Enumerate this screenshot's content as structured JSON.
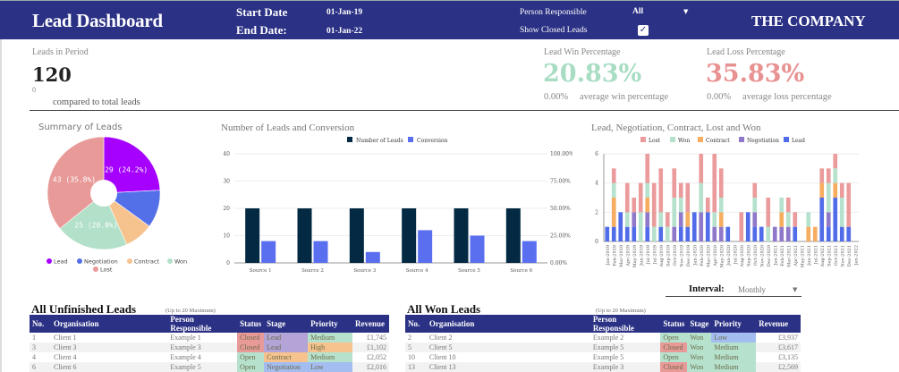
{
  "header": {
    "title": "Lead Dashboard",
    "start_label": "Start Date",
    "start_value": "01-Jan-19",
    "end_label": "End Date:",
    "end_value": "01-Jan-22",
    "person_label": "Person Responsible",
    "person_value": "All",
    "show_closed_label": "Show Closed Leads",
    "show_closed_checked": true,
    "checkmark": "✓",
    "company": "THE COMPANY"
  },
  "kpis": {
    "leads": {
      "label": "Leads in Period",
      "value": "120",
      "sub_value": "0",
      "sub_text": "compared to total leads"
    },
    "win": {
      "label": "Lead Win Percentage",
      "value": "20.83%",
      "avg_value": "0.00%",
      "avg_text": "average win percentage",
      "color": "#a8dcc3"
    },
    "loss": {
      "label": "Lead Loss Percentage",
      "value": "35.83%",
      "avg_value": "0.00%",
      "avg_text": "average loss percentage",
      "color": "#e89191"
    }
  },
  "colors": {
    "lead": "#a600ff",
    "negotiation": "#5470e8",
    "contract": "#f6c38f",
    "won": "#b2e0c9",
    "lost": "#e89a98",
    "bar_lead": "#506ce8",
    "bar_neg": "#8f77c9",
    "bar_contract": "#f6ad5f",
    "bar_won": "#b6e2cd",
    "bar_lost": "#eb9b9b",
    "num_leads": "#042a43",
    "conversion": "#5a6fef"
  },
  "chart_data": [
    {
      "type": "pie",
      "title": "Summary of Leads",
      "labels": [
        "Lead",
        "Negotiation",
        "Contract",
        "Won",
        "Lost"
      ],
      "values": [
        29,
        13,
        10,
        25,
        43
      ],
      "data_labels": [
        "29 (24.2%)",
        "",
        "",
        "25 (20.8%)",
        "43 (35.8%)"
      ],
      "legend_position": "bottom",
      "donut": true
    },
    {
      "type": "bar",
      "title": "Number of Leads and Conversion",
      "categories": [
        "Source 1",
        "Source 2",
        "Source 3",
        "Source 4",
        "Source 5",
        "Source 6"
      ],
      "series": [
        {
          "name": "Number of Leads",
          "axis": "left",
          "values": [
            20,
            20,
            20,
            20,
            20,
            20
          ]
        },
        {
          "name": "Conversion",
          "axis": "right",
          "values": [
            0.2,
            0.2,
            0.1,
            0.3,
            0.25,
            0.2
          ]
        }
      ],
      "ylim": [
        0,
        40
      ],
      "yticks": [
        "0",
        "10",
        "20",
        "30",
        "40"
      ],
      "y2lim": [
        0,
        1
      ],
      "y2ticks": [
        "0.00%",
        "25.00%",
        "50.00%",
        "75.00%",
        "100.00%"
      ],
      "legend_position": "top",
      "grid": true
    },
    {
      "type": "bar",
      "stacked": true,
      "title": "Lead, Negotiation, Contract, Lost and Won",
      "legend": [
        "Lost",
        "Won",
        "Contract",
        "Negotiation",
        "Lead"
      ],
      "categories": [
        "Jan-2019",
        "Feb-2019",
        "Mar-2019",
        "Apr-2019",
        "May-2019",
        "Jun-2019",
        "Jul-2019",
        "Jul-2019",
        "Aug-2019",
        "Sep-2019",
        "Oct-2019",
        "Nov-2019",
        "Dec-2019",
        "Jan-2020",
        "Feb-2020",
        "Mar-2020",
        "Apr-2020",
        "May-2020",
        "Jun-2020",
        "Jul-2020",
        "Aug-2020",
        "Sep-2020",
        "Oct-2020",
        "Nov-2020",
        "Dec-2020",
        "Jan-2021",
        "Feb-2021",
        "Mar-2021",
        "Apr-2021",
        "May-2021",
        "Jun-2021",
        "Jul-2021",
        "Aug-2021",
        "Sep-2021",
        "Oct-2021",
        "Nov-2021",
        "Dec-2021",
        "Jan-2022"
      ],
      "series": [
        {
          "name": "Lead",
          "values": [
            1,
            1,
            2,
            1,
            1,
            0,
            1,
            0,
            1,
            0,
            0,
            1,
            1,
            2,
            0,
            2,
            0,
            0,
            1,
            0,
            0,
            2,
            1,
            1,
            0,
            0,
            0,
            0,
            1,
            0,
            0,
            0,
            3,
            1,
            3,
            1,
            1,
            0
          ]
        },
        {
          "name": "Negotiation",
          "values": [
            0,
            0,
            0,
            0,
            1,
            0,
            1,
            0,
            0,
            0,
            1,
            1,
            0,
            0,
            2,
            0,
            1,
            1,
            0,
            0,
            0,
            0,
            1,
            0,
            0,
            1,
            1,
            1,
            0,
            0,
            0,
            0,
            0,
            1,
            0,
            0,
            0,
            0
          ]
        },
        {
          "name": "Contract",
          "values": [
            0,
            2,
            0,
            0,
            0,
            0,
            1,
            0,
            0,
            0,
            0,
            0,
            1,
            0,
            0,
            0,
            0,
            1,
            0,
            0,
            0,
            0,
            0,
            0,
            0,
            0,
            1,
            0,
            0,
            0,
            1,
            1,
            1,
            0,
            1,
            0,
            0,
            0
          ]
        },
        {
          "name": "Won",
          "values": [
            0,
            1,
            0,
            1,
            0,
            2,
            1,
            1,
            1,
            1,
            2,
            1,
            0,
            0,
            2,
            0,
            1,
            1,
            0,
            0,
            0,
            0,
            1,
            0,
            1,
            0,
            1,
            1,
            0,
            0,
            1,
            0,
            0,
            2,
            1,
            2,
            0,
            0
          ]
        },
        {
          "name": "Lost",
          "values": [
            0,
            1,
            0,
            2,
            1,
            2,
            2,
            3,
            3,
            1,
            2,
            1,
            2,
            0,
            2,
            1,
            4,
            2,
            0,
            0,
            2,
            0,
            1,
            0,
            2,
            0,
            0,
            1,
            1,
            0,
            0,
            0,
            1,
            1,
            1,
            1,
            3,
            0
          ]
        }
      ],
      "ylim": [
        0,
        6
      ],
      "yticks": [
        "0",
        "2",
        "4",
        "6"
      ],
      "legend_position": "top",
      "grid": true
    }
  ],
  "interval": {
    "label": "Interval:",
    "value": "Monthly"
  },
  "unfinished": {
    "title": "All Unfinished Leads",
    "note": "(Up to 20 Maximum)",
    "columns": [
      "No.",
      "Organisation",
      "Person Responsible",
      "Status",
      "Stage",
      "Priority",
      "Revenue"
    ],
    "rows": [
      {
        "no": "1",
        "org": "Client 1",
        "person": "Example 1",
        "status": "Closed",
        "stage": "Lead",
        "priority": "Medium",
        "revenue": "£1,745"
      },
      {
        "no": "3",
        "org": "Client 3",
        "person": "Example 3",
        "status": "Closed",
        "stage": "Lead",
        "priority": "High",
        "revenue": "£1,102"
      },
      {
        "no": "4",
        "org": "Client 4",
        "person": "Example 4",
        "status": "Open",
        "stage": "Contract",
        "priority": "Medium",
        "revenue": "£2,052"
      },
      {
        "no": "6",
        "org": "Client 6",
        "person": "Example 5",
        "status": "Open",
        "stage": "Negotiation",
        "priority": "Low",
        "revenue": "£2,016"
      }
    ]
  },
  "won": {
    "title": "All Won Leads",
    "note": "(Up to 20 Maximum)",
    "columns": [
      "No.",
      "Organisation",
      "Person Responsible",
      "Status",
      "Stage",
      "Priority",
      "Revenue"
    ],
    "rows": [
      {
        "no": "2",
        "org": "Client 2",
        "person": "Example 2",
        "status": "Open",
        "stage": "Won",
        "priority": "Low",
        "revenue": "£3,937"
      },
      {
        "no": "5",
        "org": "Client 5",
        "person": "Example 5",
        "status": "Closed",
        "stage": "Won",
        "priority": "Medium",
        "revenue": "£3,617"
      },
      {
        "no": "10",
        "org": "Client 10",
        "person": "Example 5",
        "status": "Open",
        "stage": "Won",
        "priority": "Medium",
        "revenue": "£3,135"
      },
      {
        "no": "13",
        "org": "Client 13",
        "person": "Example 3",
        "status": "Closed",
        "stage": "Won",
        "priority": "Medium",
        "revenue": "£2,569"
      }
    ]
  },
  "cell_colors": {
    "status": {
      "Closed": "#e89a98",
      "Open": "#b6e2cd"
    },
    "stage": {
      "Lead": "#b3a3d6",
      "Contract": "#f6c38f",
      "Negotiation": "#a4bdf0",
      "Won": "#b6e2cd"
    },
    "priority": {
      "Medium": "#b6e2cd",
      "High": "#f6c38f",
      "Low": "#a4bdf0"
    }
  }
}
